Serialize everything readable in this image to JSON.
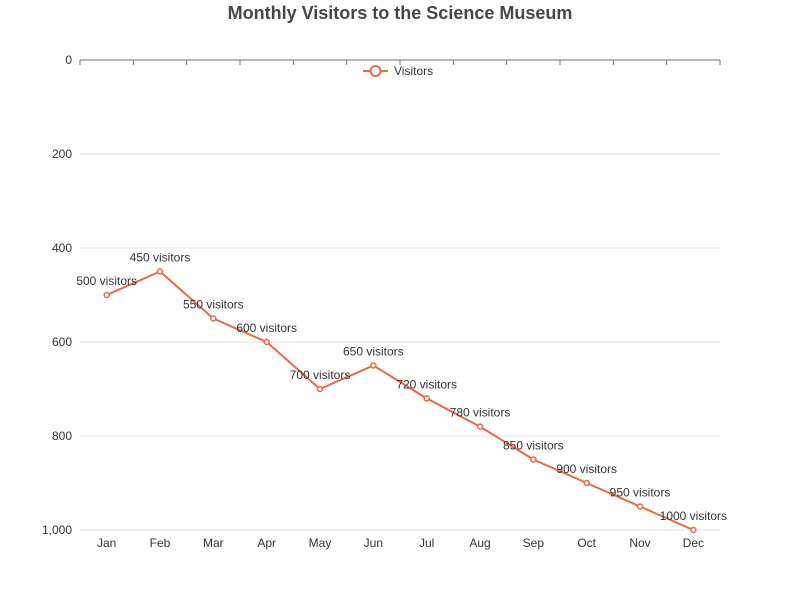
{
  "chart_data": {
    "type": "line",
    "title": "Monthly Visitors to the Science Museum",
    "xlabel": "",
    "ylabel": "",
    "categories": [
      "Jan",
      "Feb",
      "Mar",
      "Apr",
      "May",
      "Jun",
      "Jul",
      "Aug",
      "Sep",
      "Oct",
      "Nov",
      "Dec"
    ],
    "series": [
      {
        "name": "Visitors",
        "values": [
          500,
          450,
          550,
          600,
          700,
          650,
          720,
          780,
          850,
          900,
          950,
          1000
        ],
        "labels": [
          "500 visitors",
          "450 visitors",
          "550 visitors",
          "600 visitors",
          "700 visitors",
          "650 visitors",
          "720 visitors",
          "780 visitors",
          "850 visitors",
          "900 visitors",
          "950 visitors",
          "1000 visitors"
        ],
        "color": "#ee6644"
      }
    ],
    "y_axis": {
      "inverse": true,
      "range": [
        0,
        1000
      ],
      "ticks": [
        0,
        200,
        400,
        600,
        800,
        1000
      ],
      "tick_labels": [
        "0",
        "200",
        "400",
        "600",
        "800",
        "1,000"
      ]
    },
    "grid": true,
    "legend": "top-center"
  },
  "colors": {
    "series": "#ee6644",
    "grid": "#e6e6e6",
    "axis": "#6e7079",
    "text": "#333333",
    "title": "#464646"
  }
}
